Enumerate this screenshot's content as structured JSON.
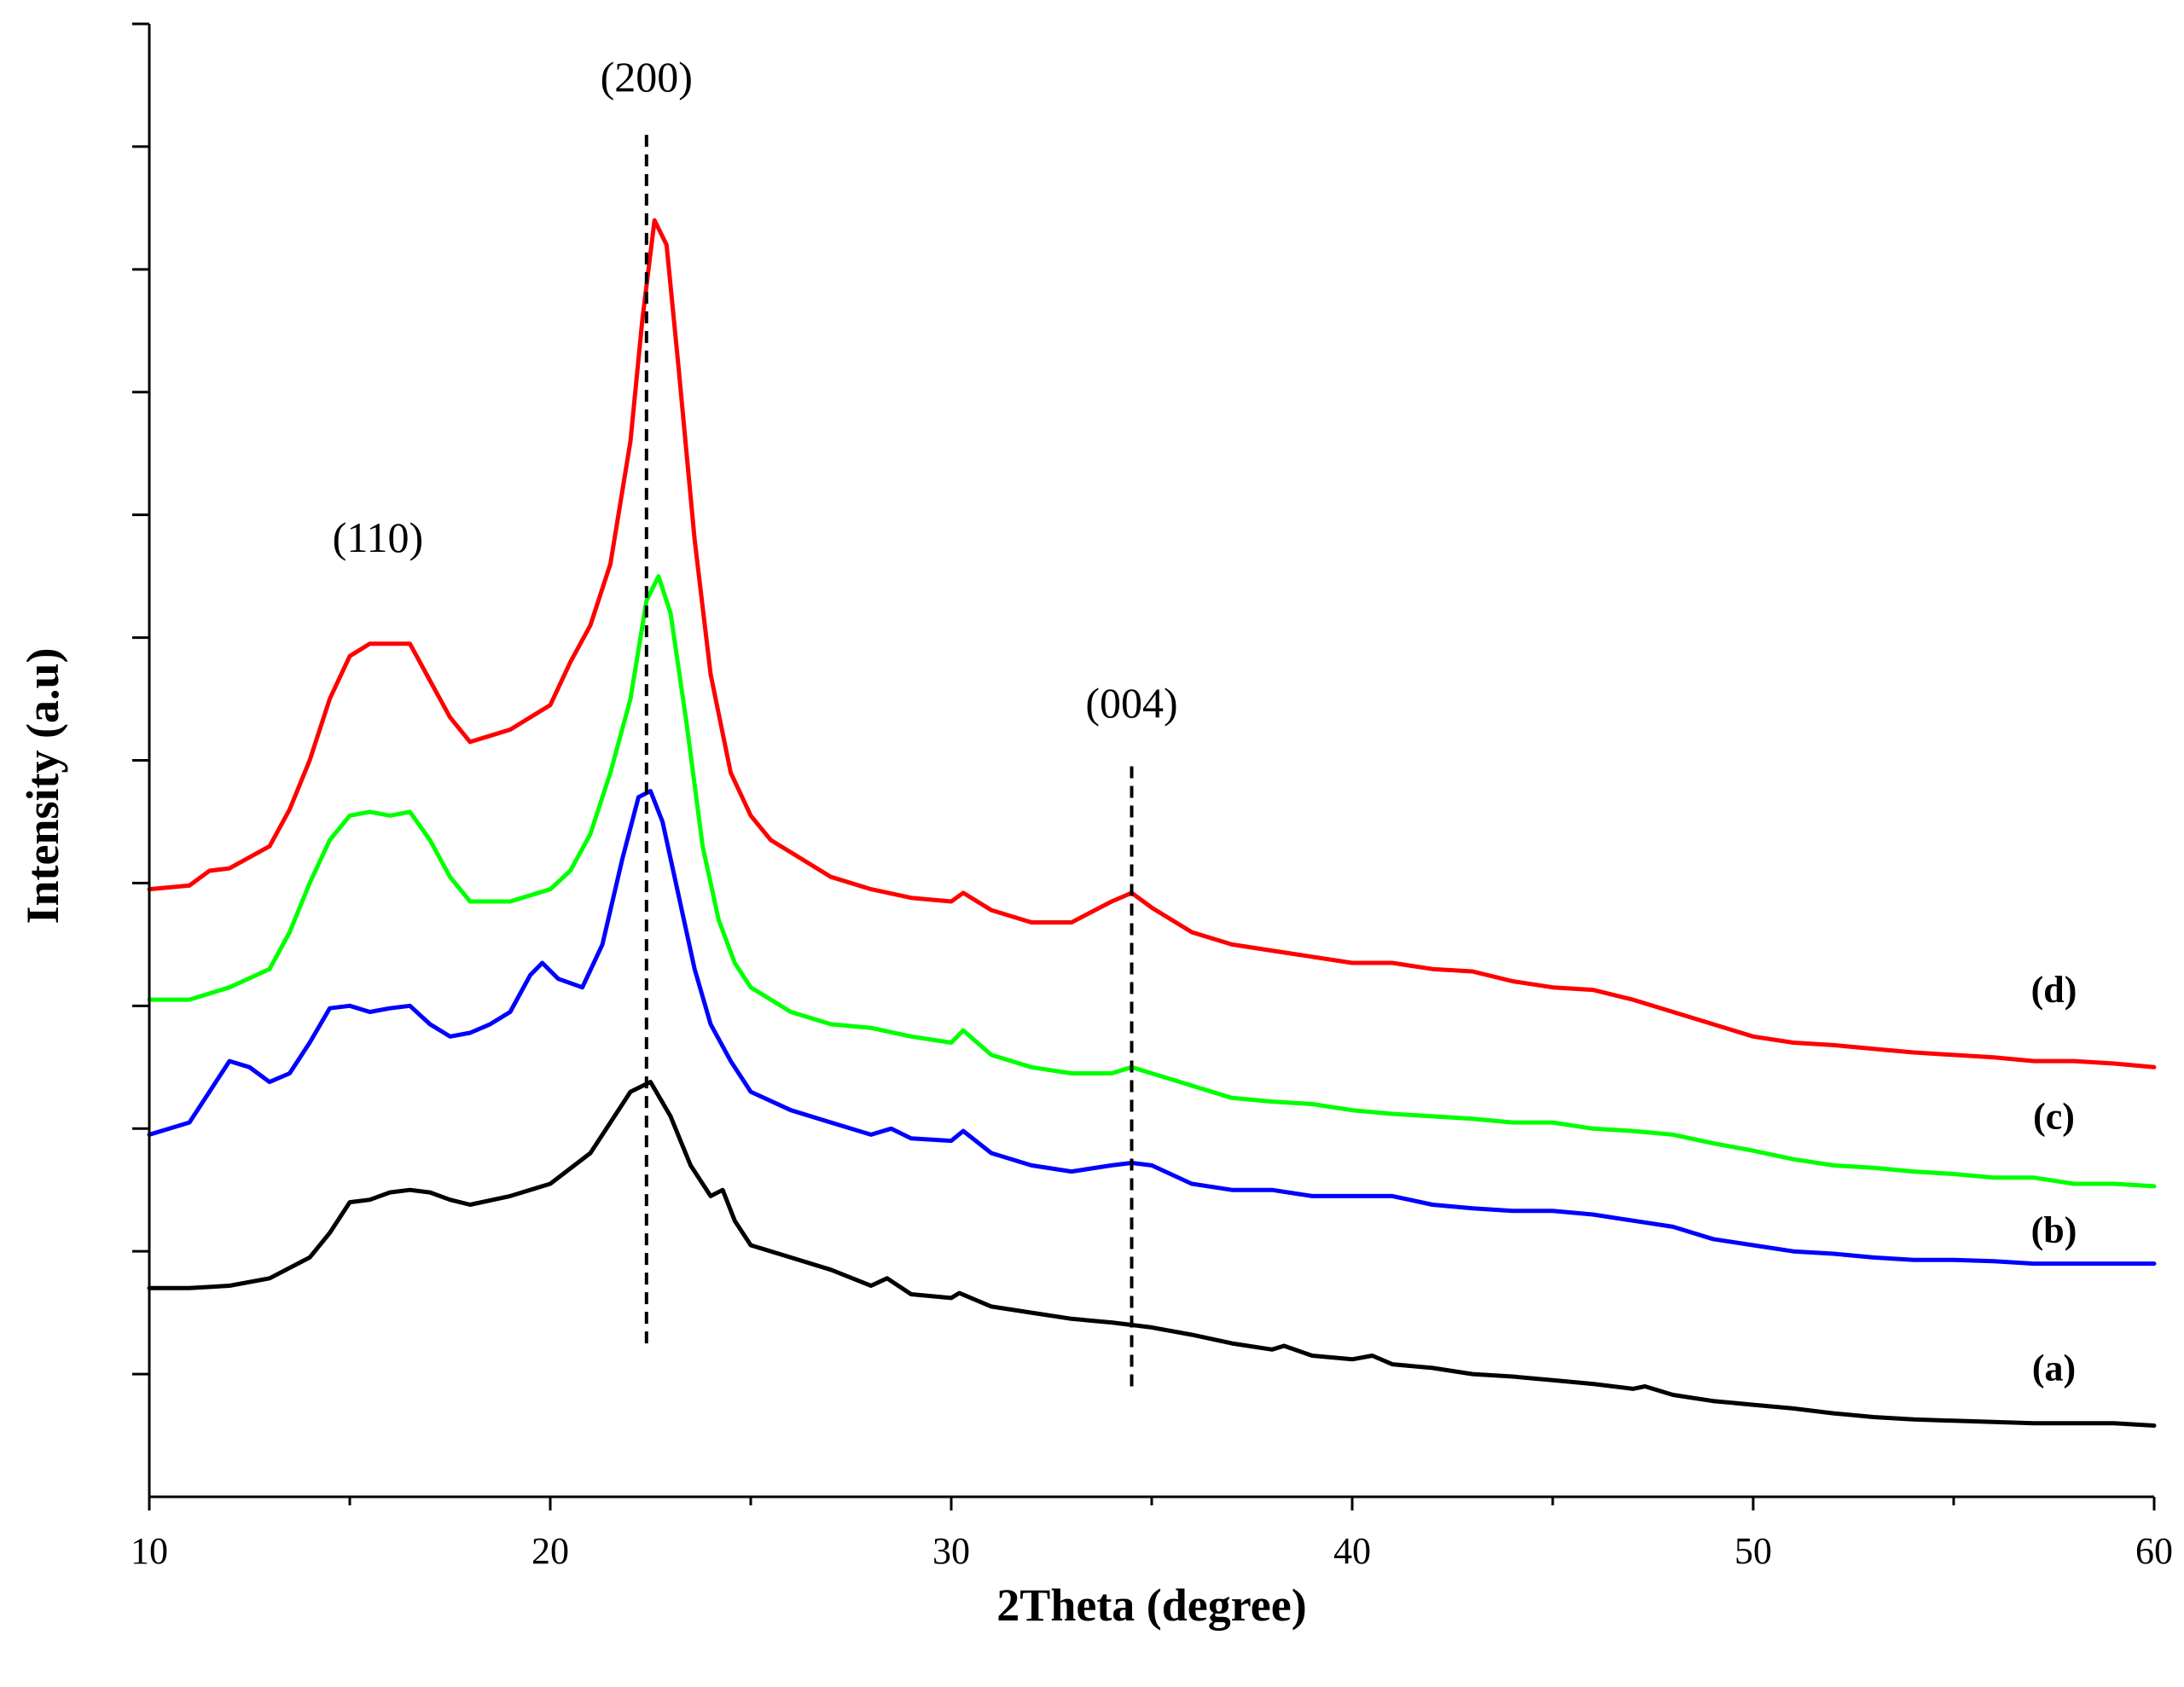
{
  "chart_data": {
    "type": "line",
    "title": "",
    "xlabel": "2Theta (degree)",
    "ylabel": "Intensity (a.u)",
    "xlim": [
      10,
      60
    ],
    "ylim": [
      0,
      12
    ],
    "grid": false,
    "x_major_ticks": [
      10,
      20,
      30,
      40,
      50,
      60
    ],
    "x_tick_labels": [
      "10",
      "20",
      "30",
      "40",
      "50",
      "60"
    ],
    "x_minor_ticks": [
      15,
      25,
      35,
      45,
      55
    ],
    "y_ticks": [
      1,
      2,
      3,
      4,
      5,
      6,
      7,
      8,
      9,
      10,
      11,
      12
    ],
    "series": [
      {
        "name": "(a)",
        "label": "(a)",
        "color": "#000000",
        "points": [
          [
            10,
            1.7
          ],
          [
            11,
            1.7
          ],
          [
            12,
            1.72
          ],
          [
            13,
            1.78
          ],
          [
            14,
            1.95
          ],
          [
            14.5,
            2.15
          ],
          [
            15,
            2.4
          ],
          [
            15.5,
            2.42
          ],
          [
            16,
            2.48
          ],
          [
            16.5,
            2.5
          ],
          [
            17,
            2.48
          ],
          [
            17.5,
            2.42
          ],
          [
            18,
            2.38
          ],
          [
            19,
            2.45
          ],
          [
            20,
            2.55
          ],
          [
            21,
            2.8
          ],
          [
            21.5,
            3.05
          ],
          [
            22,
            3.3
          ],
          [
            22.5,
            3.38
          ],
          [
            23,
            3.1
          ],
          [
            23.5,
            2.7
          ],
          [
            24,
            2.45
          ],
          [
            24.3,
            2.5
          ],
          [
            24.6,
            2.25
          ],
          [
            25,
            2.05
          ],
          [
            26,
            1.95
          ],
          [
            27,
            1.85
          ],
          [
            28,
            1.72
          ],
          [
            28.4,
            1.78
          ],
          [
            29,
            1.65
          ],
          [
            30,
            1.62
          ],
          [
            30.2,
            1.66
          ],
          [
            31,
            1.55
          ],
          [
            32,
            1.5
          ],
          [
            33,
            1.45
          ],
          [
            34,
            1.42
          ],
          [
            35,
            1.38
          ],
          [
            36,
            1.32
          ],
          [
            37,
            1.25
          ],
          [
            38,
            1.2
          ],
          [
            38.3,
            1.23
          ],
          [
            39,
            1.15
          ],
          [
            40,
            1.12
          ],
          [
            40.5,
            1.15
          ],
          [
            41,
            1.08
          ],
          [
            42,
            1.05
          ],
          [
            43,
            1.0
          ],
          [
            44,
            0.98
          ],
          [
            45,
            0.95
          ],
          [
            46,
            0.92
          ],
          [
            47,
            0.88
          ],
          [
            47.3,
            0.9
          ],
          [
            48,
            0.83
          ],
          [
            49,
            0.78
          ],
          [
            50,
            0.75
          ],
          [
            51,
            0.72
          ],
          [
            52,
            0.68
          ],
          [
            53,
            0.65
          ],
          [
            54,
            0.63
          ],
          [
            55,
            0.62
          ],
          [
            56,
            0.61
          ],
          [
            57,
            0.6
          ],
          [
            58,
            0.6
          ],
          [
            59,
            0.6
          ],
          [
            60,
            0.58
          ]
        ]
      },
      {
        "name": "(b)",
        "label": "(b)",
        "color": "#0000ff",
        "points": [
          [
            10,
            2.95
          ],
          [
            11,
            3.05
          ],
          [
            11.5,
            3.3
          ],
          [
            12,
            3.55
          ],
          [
            12.5,
            3.5
          ],
          [
            13,
            3.38
          ],
          [
            13.5,
            3.45
          ],
          [
            14,
            3.7
          ],
          [
            14.5,
            3.98
          ],
          [
            15,
            4.0
          ],
          [
            15.5,
            3.95
          ],
          [
            16,
            3.98
          ],
          [
            16.5,
            4.0
          ],
          [
            17,
            3.85
          ],
          [
            17.5,
            3.75
          ],
          [
            18,
            3.78
          ],
          [
            18.5,
            3.85
          ],
          [
            19,
            3.95
          ],
          [
            19.5,
            4.25
          ],
          [
            19.8,
            4.35
          ],
          [
            20.2,
            4.22
          ],
          [
            20.8,
            4.15
          ],
          [
            21.3,
            4.5
          ],
          [
            21.8,
            5.2
          ],
          [
            22.2,
            5.7
          ],
          [
            22.5,
            5.75
          ],
          [
            22.8,
            5.5
          ],
          [
            23.2,
            4.9
          ],
          [
            23.6,
            4.3
          ],
          [
            24,
            3.85
          ],
          [
            24.5,
            3.55
          ],
          [
            25,
            3.3
          ],
          [
            26,
            3.15
          ],
          [
            27,
            3.05
          ],
          [
            28,
            2.95
          ],
          [
            28.5,
            3.0
          ],
          [
            29,
            2.92
          ],
          [
            30,
            2.9
          ],
          [
            30.3,
            2.98
          ],
          [
            31,
            2.8
          ],
          [
            32,
            2.7
          ],
          [
            33,
            2.65
          ],
          [
            34,
            2.7
          ],
          [
            34.5,
            2.72
          ],
          [
            35,
            2.7
          ],
          [
            36,
            2.55
          ],
          [
            37,
            2.5
          ],
          [
            38,
            2.5
          ],
          [
            39,
            2.45
          ],
          [
            40,
            2.45
          ],
          [
            41,
            2.45
          ],
          [
            42,
            2.38
          ],
          [
            43,
            2.35
          ],
          [
            44,
            2.33
          ],
          [
            45,
            2.33
          ],
          [
            46,
            2.3
          ],
          [
            47,
            2.25
          ],
          [
            48,
            2.2
          ],
          [
            49,
            2.1
          ],
          [
            50,
            2.05
          ],
          [
            51,
            2.0
          ],
          [
            52,
            1.98
          ],
          [
            53,
            1.95
          ],
          [
            54,
            1.93
          ],
          [
            55,
            1.93
          ],
          [
            56,
            1.92
          ],
          [
            57,
            1.9
          ],
          [
            58,
            1.9
          ],
          [
            59,
            1.9
          ],
          [
            60,
            1.9
          ]
        ]
      },
      {
        "name": "(c)",
        "label": "(c)",
        "color": "#00ff00",
        "points": [
          [
            10,
            4.05
          ],
          [
            11,
            4.05
          ],
          [
            12,
            4.15
          ],
          [
            13,
            4.3
          ],
          [
            13.5,
            4.6
          ],
          [
            14,
            5.0
          ],
          [
            14.5,
            5.35
          ],
          [
            15,
            5.55
          ],
          [
            15.5,
            5.58
          ],
          [
            16,
            5.55
          ],
          [
            16.5,
            5.58
          ],
          [
            17,
            5.35
          ],
          [
            17.5,
            5.05
          ],
          [
            18,
            4.85
          ],
          [
            19,
            4.85
          ],
          [
            20,
            4.95
          ],
          [
            20.5,
            5.1
          ],
          [
            21,
            5.4
          ],
          [
            21.5,
            5.9
          ],
          [
            22,
            6.5
          ],
          [
            22.4,
            7.3
          ],
          [
            22.7,
            7.5
          ],
          [
            23,
            7.2
          ],
          [
            23.4,
            6.3
          ],
          [
            23.8,
            5.3
          ],
          [
            24.2,
            4.7
          ],
          [
            24.6,
            4.35
          ],
          [
            25,
            4.15
          ],
          [
            26,
            3.95
          ],
          [
            27,
            3.85
          ],
          [
            28,
            3.82
          ],
          [
            29,
            3.75
          ],
          [
            30,
            3.7
          ],
          [
            30.3,
            3.8
          ],
          [
            31,
            3.6
          ],
          [
            32,
            3.5
          ],
          [
            33,
            3.45
          ],
          [
            34,
            3.45
          ],
          [
            34.5,
            3.5
          ],
          [
            35,
            3.45
          ],
          [
            36,
            3.35
          ],
          [
            37,
            3.25
          ],
          [
            38,
            3.22
          ],
          [
            39,
            3.2
          ],
          [
            40,
            3.15
          ],
          [
            41,
            3.12
          ],
          [
            42,
            3.1
          ],
          [
            43,
            3.08
          ],
          [
            44,
            3.05
          ],
          [
            45,
            3.05
          ],
          [
            46,
            3.0
          ],
          [
            47,
            2.98
          ],
          [
            48,
            2.95
          ],
          [
            49,
            2.88
          ],
          [
            50,
            2.82
          ],
          [
            51,
            2.75
          ],
          [
            52,
            2.7
          ],
          [
            53,
            2.68
          ],
          [
            54,
            2.65
          ],
          [
            55,
            2.63
          ],
          [
            56,
            2.6
          ],
          [
            57,
            2.6
          ],
          [
            58,
            2.55
          ],
          [
            59,
            2.55
          ],
          [
            60,
            2.53
          ]
        ]
      },
      {
        "name": "(d)",
        "label": "(d)",
        "color": "#ff0000",
        "points": [
          [
            10,
            4.95
          ],
          [
            11,
            4.98
          ],
          [
            11.5,
            5.1
          ],
          [
            12,
            5.12
          ],
          [
            13,
            5.3
          ],
          [
            13.5,
            5.6
          ],
          [
            14,
            6.0
          ],
          [
            14.5,
            6.5
          ],
          [
            15,
            6.85
          ],
          [
            15.5,
            6.95
          ],
          [
            16,
            6.95
          ],
          [
            16.5,
            6.95
          ],
          [
            17,
            6.65
          ],
          [
            17.5,
            6.35
          ],
          [
            18,
            6.15
          ],
          [
            18.5,
            6.2
          ],
          [
            19,
            6.25
          ],
          [
            20,
            6.45
          ],
          [
            20.5,
            6.8
          ],
          [
            21,
            7.1
          ],
          [
            21.5,
            7.6
          ],
          [
            22,
            8.6
          ],
          [
            22.3,
            9.6
          ],
          [
            22.6,
            10.4
          ],
          [
            22.9,
            10.2
          ],
          [
            23.2,
            9.2
          ],
          [
            23.6,
            7.8
          ],
          [
            24,
            6.7
          ],
          [
            24.5,
            5.9
          ],
          [
            25,
            5.55
          ],
          [
            25.5,
            5.35
          ],
          [
            26,
            5.25
          ],
          [
            27,
            5.05
          ],
          [
            28,
            4.95
          ],
          [
            29,
            4.88
          ],
          [
            30,
            4.85
          ],
          [
            30.3,
            4.92
          ],
          [
            31,
            4.78
          ],
          [
            32,
            4.68
          ],
          [
            33,
            4.68
          ],
          [
            34,
            4.85
          ],
          [
            34.5,
            4.92
          ],
          [
            35,
            4.8
          ],
          [
            36,
            4.6
          ],
          [
            37,
            4.5
          ],
          [
            38,
            4.45
          ],
          [
            39,
            4.4
          ],
          [
            40,
            4.35
          ],
          [
            41,
            4.35
          ],
          [
            42,
            4.3
          ],
          [
            43,
            4.28
          ],
          [
            44,
            4.2
          ],
          [
            45,
            4.15
          ],
          [
            46,
            4.13
          ],
          [
            47,
            4.05
          ],
          [
            48,
            3.95
          ],
          [
            49,
            3.85
          ],
          [
            50,
            3.75
          ],
          [
            51,
            3.7
          ],
          [
            52,
            3.68
          ],
          [
            53,
            3.65
          ],
          [
            54,
            3.62
          ],
          [
            55,
            3.6
          ],
          [
            56,
            3.58
          ],
          [
            57,
            3.55
          ],
          [
            58,
            3.55
          ],
          [
            59,
            3.53
          ],
          [
            60,
            3.5
          ]
        ]
      }
    ],
    "reference_lines": [
      {
        "x": 22.4,
        "y_from": 1.25,
        "y_to": 11.1,
        "label": "(200)",
        "label_x": 22.4,
        "label_y": 11.45
      },
      {
        "x": 34.5,
        "y_from": 0.9,
        "y_to": 5.99,
        "label": "(004)",
        "label_x": 34.5,
        "label_y": 6.35
      }
    ],
    "annotations": [
      {
        "text": "(110)",
        "x": 15.7,
        "y": 7.7
      }
    ],
    "series_label_positions": [
      {
        "series": "(a)",
        "x": 57.5,
        "y": 0.95
      },
      {
        "series": "(b)",
        "x": 57.5,
        "y": 2.07
      },
      {
        "series": "(c)",
        "x": 57.5,
        "y": 3.0
      },
      {
        "series": "(d)",
        "x": 57.5,
        "y": 4.03
      }
    ]
  }
}
